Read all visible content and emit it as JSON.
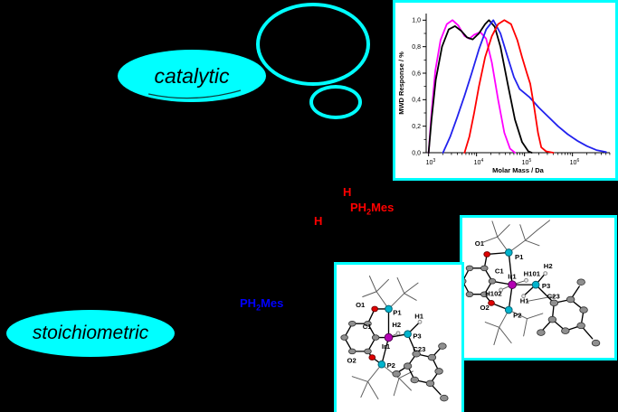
{
  "colors": {
    "background": "#000000",
    "accent_cyan": "#00ffff",
    "annotation_red": "#ff0000",
    "annotation_blue": "#0000ff",
    "iridium": "#b400b4",
    "phosphorus": "#00b4cd",
    "oxygen": "#e00000",
    "carbon": "#8f8f8f"
  },
  "bubbles": {
    "catalytic_label": "catalytic",
    "stoichiometric_label": "stoichiometric"
  },
  "annotations": {
    "h_top": "H",
    "h_left": "H",
    "ph2mes_red": {
      "pre": "PH",
      "sub": "2",
      "post": "Mes"
    },
    "ph2mes_blue": {
      "pre": "PH",
      "sub": "2",
      "post": "Mes"
    }
  },
  "chart_data": {
    "type": "line",
    "title": "",
    "xlabel": "Molar Mass / Da",
    "ylabel": "MWD Response / %",
    "x_scale": "log",
    "xlim_log10": [
      2.95,
      6.78
    ],
    "ylim": [
      0,
      1.05
    ],
    "grid": false,
    "legend": "none",
    "x_ticks": [
      {
        "log10": 3,
        "base": "10",
        "exp": "3"
      },
      {
        "log10": 4,
        "base": "10",
        "exp": "4"
      },
      {
        "log10": 5,
        "base": "10",
        "exp": "5"
      },
      {
        "log10": 6,
        "base": "10",
        "exp": "6"
      }
    ],
    "y_ticks": [
      {
        "value": 0.0,
        "label": "0,0"
      },
      {
        "value": 0.2,
        "label": "0,2"
      },
      {
        "value": 0.4,
        "label": "0,4"
      },
      {
        "value": 0.6,
        "label": "0,6"
      },
      {
        "value": 0.8,
        "label": "0,8"
      },
      {
        "value": 1.0,
        "label": "1,0"
      }
    ],
    "series": [
      {
        "name": "magenta",
        "color": "#ff00ff",
        "points": [
          [
            1000,
            0
          ],
          [
            1150,
            0.3
          ],
          [
            1380,
            0.62
          ],
          [
            1780,
            0.85
          ],
          [
            2400,
            0.97
          ],
          [
            3160,
            1.0
          ],
          [
            4170,
            0.96
          ],
          [
            5620,
            0.88
          ],
          [
            7080,
            0.86
          ],
          [
            8910,
            0.89
          ],
          [
            12000,
            0.91
          ],
          [
            15850,
            0.86
          ],
          [
            20900,
            0.68
          ],
          [
            28200,
            0.4
          ],
          [
            38000,
            0.15
          ],
          [
            50100,
            0.03
          ],
          [
            63100,
            0
          ]
        ]
      },
      {
        "name": "black",
        "color": "#000000",
        "points": [
          [
            1000,
            0
          ],
          [
            1150,
            0.25
          ],
          [
            1410,
            0.55
          ],
          [
            1910,
            0.8
          ],
          [
            2630,
            0.93
          ],
          [
            3550,
            0.955
          ],
          [
            4790,
            0.92
          ],
          [
            6310,
            0.87
          ],
          [
            8320,
            0.855
          ],
          [
            11200,
            0.9
          ],
          [
            15100,
            0.97
          ],
          [
            18200,
            1.0
          ],
          [
            24000,
            0.95
          ],
          [
            31600,
            0.8
          ],
          [
            44700,
            0.52
          ],
          [
            63100,
            0.25
          ],
          [
            89100,
            0.08
          ],
          [
            120000,
            0.01
          ],
          [
            141000,
            0
          ]
        ]
      },
      {
        "name": "blue",
        "color": "#2222ee",
        "points": [
          [
            2000,
            0
          ],
          [
            2820,
            0.12
          ],
          [
            3980,
            0.27
          ],
          [
            5620,
            0.43
          ],
          [
            7940,
            0.6
          ],
          [
            11200,
            0.78
          ],
          [
            15850,
            0.93
          ],
          [
            22400,
            1.0
          ],
          [
            31600,
            0.9
          ],
          [
            44700,
            0.72
          ],
          [
            60300,
            0.57
          ],
          [
            79400,
            0.48
          ],
          [
            126000,
            0.42
          ],
          [
            200000,
            0.34
          ],
          [
            316000,
            0.27
          ],
          [
            501000,
            0.2
          ],
          [
            794000,
            0.14
          ],
          [
            1260000,
            0.09
          ],
          [
            2000000,
            0.05
          ],
          [
            3160000,
            0.02
          ],
          [
            5010000,
            0.005
          ]
        ]
      },
      {
        "name": "red",
        "color": "#ff0000",
        "points": [
          [
            5620,
            0
          ],
          [
            7080,
            0.12
          ],
          [
            8910,
            0.3
          ],
          [
            11200,
            0.5
          ],
          [
            15100,
            0.72
          ],
          [
            20900,
            0.88
          ],
          [
            28200,
            0.97
          ],
          [
            38000,
            1.0
          ],
          [
            52500,
            0.97
          ],
          [
            70800,
            0.85
          ],
          [
            89100,
            0.72
          ],
          [
            112000,
            0.6
          ],
          [
            132000,
            0.52
          ],
          [
            158000,
            0.35
          ],
          [
            191000,
            0.15
          ],
          [
            224000,
            0.04
          ],
          [
            282000,
            0.01
          ],
          [
            398000,
            0
          ]
        ]
      }
    ]
  },
  "structures": {
    "front": {
      "labels": {
        "o1": "O1",
        "p1": "P1",
        "c1": "C1",
        "h2": "H2",
        "ir1": "Ir1",
        "h1": "H1",
        "p3": "P3",
        "c23": "C23",
        "o2": "O2",
        "p2": "P2"
      }
    },
    "back": {
      "labels": {
        "o1": "O1",
        "p1": "P1",
        "c1": "C1",
        "ir1": "Ir1",
        "h101": "H101",
        "h2": "H2",
        "h102": "H102",
        "h1": "H1",
        "p3": "P3",
        "c23": "C23",
        "o2": "O2",
        "p2": "P2"
      }
    }
  }
}
